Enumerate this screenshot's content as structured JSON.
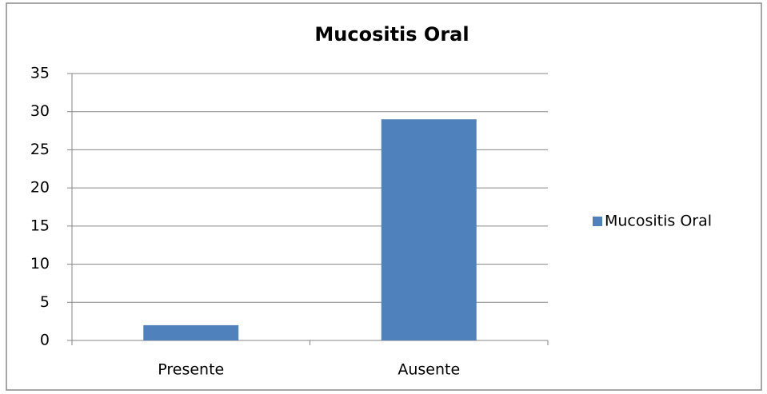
{
  "chart_data": {
    "type": "bar",
    "title": "Mucositis Oral",
    "categories": [
      "Presente",
      "Ausente"
    ],
    "series": [
      {
        "name": "Mucositis Oral",
        "color": "#4f81bd",
        "values": [
          2,
          29
        ]
      }
    ],
    "ylim": [
      0,
      35
    ],
    "yticks": [
      0,
      5,
      10,
      15,
      20,
      25,
      30,
      35
    ],
    "grid": true,
    "legend": "right"
  }
}
